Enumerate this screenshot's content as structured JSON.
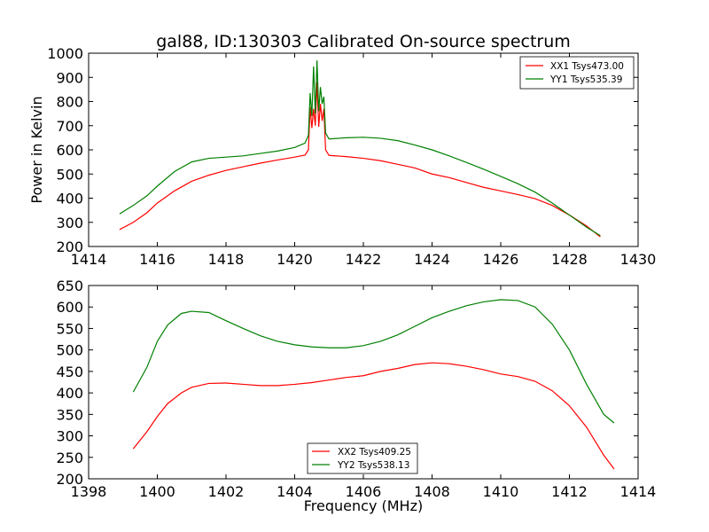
{
  "figure": {
    "title": "gal88, ID:130303 Calibrated On-source spectrum"
  },
  "chart_data": [
    {
      "type": "line",
      "ylabel": "Power in Kelvin",
      "xlabel": "",
      "xlim": [
        1414,
        1430
      ],
      "ylim": [
        200,
        1000
      ],
      "xticks": [
        1414,
        1416,
        1418,
        1420,
        1422,
        1424,
        1426,
        1428,
        1430
      ],
      "yticks": [
        200,
        300,
        400,
        500,
        600,
        700,
        800,
        900,
        1000
      ],
      "legend_position": "upper right",
      "grid": false,
      "series": [
        {
          "name": "XX1 Tsys473.00",
          "color": "#ff0000",
          "points": [
            [
              1414.9,
              270
            ],
            [
              1415.3,
              300
            ],
            [
              1415.7,
              340
            ],
            [
              1416.0,
              380
            ],
            [
              1416.5,
              430
            ],
            [
              1417.0,
              470
            ],
            [
              1417.5,
              495
            ],
            [
              1418.0,
              515
            ],
            [
              1418.5,
              530
            ],
            [
              1419.0,
              545
            ],
            [
              1419.5,
              558
            ],
            [
              1420.0,
              570
            ],
            [
              1420.3,
              578
            ],
            [
              1420.4,
              600
            ],
            [
              1420.45,
              775
            ],
            [
              1420.5,
              690
            ],
            [
              1420.55,
              770
            ],
            [
              1420.6,
              700
            ],
            [
              1420.65,
              880
            ],
            [
              1420.7,
              695
            ],
            [
              1420.75,
              790
            ],
            [
              1420.8,
              720
            ],
            [
              1420.85,
              770
            ],
            [
              1420.9,
              600
            ],
            [
              1421.0,
              577
            ],
            [
              1421.5,
              572
            ],
            [
              1422.0,
              565
            ],
            [
              1422.5,
              555
            ],
            [
              1423.0,
              540
            ],
            [
              1423.5,
              525
            ],
            [
              1424.0,
              500
            ],
            [
              1424.5,
              485
            ],
            [
              1425.0,
              465
            ],
            [
              1425.5,
              445
            ],
            [
              1426.0,
              430
            ],
            [
              1426.5,
              415
            ],
            [
              1427.0,
              398
            ],
            [
              1427.5,
              370
            ],
            [
              1428.0,
              330
            ],
            [
              1428.5,
              285
            ],
            [
              1428.9,
              240
            ]
          ]
        },
        {
          "name": "YY1 Tsys535.39",
          "color": "#008000",
          "points": [
            [
              1414.9,
              335
            ],
            [
              1415.3,
              370
            ],
            [
              1415.7,
              410
            ],
            [
              1416.0,
              450
            ],
            [
              1416.5,
              510
            ],
            [
              1417.0,
              550
            ],
            [
              1417.5,
              565
            ],
            [
              1418.0,
              570
            ],
            [
              1418.5,
              575
            ],
            [
              1419.0,
              585
            ],
            [
              1419.5,
              595
            ],
            [
              1420.0,
              610
            ],
            [
              1420.3,
              628
            ],
            [
              1420.4,
              660
            ],
            [
              1420.45,
              835
            ],
            [
              1420.5,
              740
            ],
            [
              1420.55,
              945
            ],
            [
              1420.6,
              750
            ],
            [
              1420.65,
              970
            ],
            [
              1420.7,
              760
            ],
            [
              1420.75,
              860
            ],
            [
              1420.8,
              790
            ],
            [
              1420.85,
              820
            ],
            [
              1420.9,
              670
            ],
            [
              1421.0,
              645
            ],
            [
              1421.5,
              650
            ],
            [
              1422.0,
              652
            ],
            [
              1422.5,
              648
            ],
            [
              1423.0,
              638
            ],
            [
              1423.5,
              620
            ],
            [
              1424.0,
              600
            ],
            [
              1424.5,
              575
            ],
            [
              1425.0,
              548
            ],
            [
              1425.5,
              520
            ],
            [
              1426.0,
              490
            ],
            [
              1426.5,
              460
            ],
            [
              1427.0,
              425
            ],
            [
              1427.5,
              380
            ],
            [
              1428.0,
              330
            ],
            [
              1428.5,
              280
            ],
            [
              1428.9,
              245
            ]
          ]
        }
      ]
    },
    {
      "type": "line",
      "ylabel": "",
      "xlabel": "Frequency (MHz)",
      "xlim": [
        1398,
        1414
      ],
      "ylim": [
        200,
        650
      ],
      "xticks": [
        1398,
        1400,
        1402,
        1404,
        1406,
        1408,
        1410,
        1412,
        1414
      ],
      "yticks": [
        200,
        250,
        300,
        350,
        400,
        450,
        500,
        550,
        600,
        650
      ],
      "legend_position": "lower center",
      "grid": false,
      "series": [
        {
          "name": "XX2 Tsys409.25",
          "color": "#ff0000",
          "points": [
            [
              1399.3,
              270
            ],
            [
              1399.7,
              310
            ],
            [
              1400.0,
              345
            ],
            [
              1400.3,
              375
            ],
            [
              1400.7,
              400
            ],
            [
              1401.0,
              413
            ],
            [
              1401.5,
              422
            ],
            [
              1402.0,
              423
            ],
            [
              1402.5,
              420
            ],
            [
              1403.0,
              417
            ],
            [
              1403.5,
              417
            ],
            [
              1404.0,
              420
            ],
            [
              1404.5,
              424
            ],
            [
              1405.0,
              430
            ],
            [
              1405.5,
              436
            ],
            [
              1406.0,
              440
            ],
            [
              1406.5,
              450
            ],
            [
              1407.0,
              457
            ],
            [
              1407.5,
              466
            ],
            [
              1408.0,
              470
            ],
            [
              1408.5,
              468
            ],
            [
              1409.0,
              462
            ],
            [
              1409.5,
              454
            ],
            [
              1410.0,
              444
            ],
            [
              1410.5,
              438
            ],
            [
              1411.0,
              427
            ],
            [
              1411.5,
              405
            ],
            [
              1412.0,
              370
            ],
            [
              1412.5,
              320
            ],
            [
              1413.0,
              255
            ],
            [
              1413.3,
              223
            ]
          ]
        },
        {
          "name": "YY2 Tsys538.13",
          "color": "#008000",
          "points": [
            [
              1399.3,
              402
            ],
            [
              1399.7,
              460
            ],
            [
              1400.0,
              520
            ],
            [
              1400.3,
              558
            ],
            [
              1400.7,
              585
            ],
            [
              1401.0,
              590
            ],
            [
              1401.5,
              587
            ],
            [
              1402.0,
              568
            ],
            [
              1402.5,
              550
            ],
            [
              1403.0,
              533
            ],
            [
              1403.5,
              520
            ],
            [
              1404.0,
              512
            ],
            [
              1404.5,
              507
            ],
            [
              1405.0,
              505
            ],
            [
              1405.5,
              505
            ],
            [
              1406.0,
              510
            ],
            [
              1406.5,
              520
            ],
            [
              1407.0,
              535
            ],
            [
              1407.5,
              555
            ],
            [
              1408.0,
              575
            ],
            [
              1408.5,
              590
            ],
            [
              1409.0,
              603
            ],
            [
              1409.5,
              612
            ],
            [
              1410.0,
              617
            ],
            [
              1410.5,
              615
            ],
            [
              1411.0,
              600
            ],
            [
              1411.5,
              560
            ],
            [
              1412.0,
              500
            ],
            [
              1412.5,
              420
            ],
            [
              1413.0,
              350
            ],
            [
              1413.3,
              330
            ]
          ]
        }
      ]
    }
  ]
}
